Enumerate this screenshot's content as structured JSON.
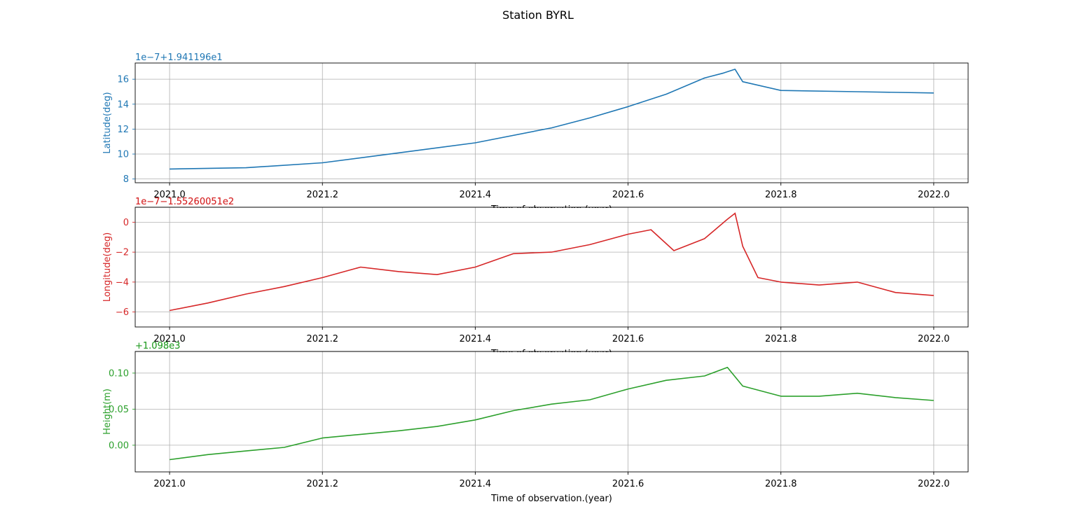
{
  "figure": {
    "title": "Station BYRL"
  },
  "chart_data": [
    {
      "type": "line",
      "name": "latitude",
      "color": "#1f77b4",
      "title": "",
      "xlabel": "Time of observation.(year)",
      "ylabel": "Latitude(deg)",
      "offset_label": "1e−7+1.941196e1",
      "xlim": [
        2020.955,
        2022.045
      ],
      "ylim": [
        7.7,
        17.3
      ],
      "xticks": [
        2021.0,
        2021.2,
        2021.4,
        2021.6,
        2021.8,
        2022.0
      ],
      "xtick_labels": [
        "2021.0",
        "2021.2",
        "2021.4",
        "2021.6",
        "2021.8",
        "2022.0"
      ],
      "yticks": [
        8,
        10,
        12,
        14,
        16
      ],
      "ytick_labels": [
        "8",
        "10",
        "12",
        "14",
        "16"
      ],
      "grid": true,
      "x": [
        2021.0,
        2021.1,
        2021.2,
        2021.3,
        2021.4,
        2021.5,
        2021.55,
        2021.6,
        2021.65,
        2021.7,
        2021.725,
        2021.74,
        2021.75,
        2021.8,
        2021.9,
        2022.0
      ],
      "y": [
        8.8,
        8.9,
        9.3,
        10.1,
        10.9,
        12.1,
        12.9,
        13.8,
        14.8,
        16.1,
        16.5,
        16.8,
        15.8,
        15.1,
        15.0,
        14.9
      ]
    },
    {
      "type": "line",
      "name": "longitude",
      "color": "#d62728",
      "title": "",
      "xlabel": "Time of observation.(year)",
      "ylabel": "Longitude(deg)",
      "offset_label": "1e−7−1.55260051e2",
      "xlim": [
        2020.955,
        2022.045
      ],
      "ylim": [
        -7.0,
        1.0
      ],
      "xticks": [
        2021.0,
        2021.2,
        2021.4,
        2021.6,
        2021.8,
        2022.0
      ],
      "xtick_labels": [
        "2021.0",
        "2021.2",
        "2021.4",
        "2021.6",
        "2021.8",
        "2022.0"
      ],
      "yticks": [
        -6,
        -4,
        -2,
        0
      ],
      "ytick_labels": [
        "−6",
        "−4",
        "−2",
        "0"
      ],
      "grid": true,
      "x": [
        2021.0,
        2021.05,
        2021.1,
        2021.15,
        2021.2,
        2021.25,
        2021.3,
        2021.35,
        2021.4,
        2021.45,
        2021.5,
        2021.55,
        2021.6,
        2021.63,
        2021.66,
        2021.7,
        2021.73,
        2021.74,
        2021.75,
        2021.77,
        2021.8,
        2021.85,
        2021.9,
        2021.95,
        2022.0
      ],
      "y": [
        -5.9,
        -5.4,
        -4.8,
        -4.3,
        -3.7,
        -3.0,
        -3.3,
        -3.5,
        -3.0,
        -2.1,
        -2.0,
        -1.5,
        -0.8,
        -0.5,
        -1.9,
        -1.1,
        0.2,
        0.6,
        -1.6,
        -3.7,
        -4.0,
        -4.2,
        -4.0,
        -4.7,
        -4.9
      ]
    },
    {
      "type": "line",
      "name": "height",
      "color": "#2ca02c",
      "title": "",
      "xlabel": "Time of observation.(year)",
      "ylabel": "Height(m)",
      "offset_label": "+1.098e3",
      "xlim": [
        2020.955,
        2022.045
      ],
      "ylim": [
        -0.037,
        0.13
      ],
      "xticks": [
        2021.0,
        2021.2,
        2021.4,
        2021.6,
        2021.8,
        2022.0
      ],
      "xtick_labels": [
        "2021.0",
        "2021.2",
        "2021.4",
        "2021.6",
        "2021.8",
        "2022.0"
      ],
      "yticks": [
        0.0,
        0.05,
        0.1
      ],
      "ytick_labels": [
        "0.00",
        "0.05",
        "0.10"
      ],
      "grid": true,
      "x": [
        2021.0,
        2021.05,
        2021.1,
        2021.15,
        2021.2,
        2021.25,
        2021.3,
        2021.35,
        2021.4,
        2021.45,
        2021.5,
        2021.55,
        2021.6,
        2021.65,
        2021.7,
        2021.73,
        2021.75,
        2021.8,
        2021.85,
        2021.9,
        2021.95,
        2022.0
      ],
      "y": [
        -0.02,
        -0.013,
        -0.008,
        -0.003,
        0.01,
        0.015,
        0.02,
        0.026,
        0.035,
        0.048,
        0.057,
        0.063,
        0.078,
        0.09,
        0.096,
        0.108,
        0.082,
        0.068,
        0.068,
        0.072,
        0.066,
        0.062
      ]
    }
  ]
}
